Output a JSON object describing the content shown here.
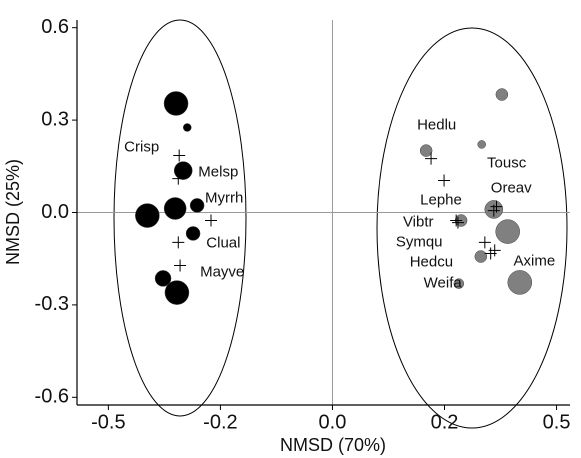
{
  "chart_data": {
    "type": "scatter",
    "x_label": "NMSD (70%)",
    "y_label": "NMSD (25%)",
    "xlim": [
      -0.57,
      0.53
    ],
    "ylim": [
      -0.625,
      0.625
    ],
    "xticks": [
      -0.5,
      {
        "value": -0.25,
        "label": "-0.2"
      },
      {
        "value": 0,
        "label": "0.0"
      },
      {
        "value": 0.25,
        "label": "0.2"
      },
      0.5
    ],
    "yticks": [
      0.6,
      0.3,
      {
        "value": 0,
        "label": "0.0"
      },
      -0.3,
      -0.6
    ],
    "series": [
      {
        "color": "#000000",
        "x": [
          -0.349,
          -0.324,
          -0.333,
          -0.302,
          -0.351,
          -0.413,
          -0.311,
          -0.378,
          -0.347
        ],
        "values": [
          0.354,
          0.276,
          0.136,
          0.023,
          0.013,
          -0.01,
          -0.068,
          -0.214,
          -0.26
        ],
        "sizes": [
          12,
          4,
          9,
          7,
          11,
          12,
          7,
          8,
          12
        ]
      },
      {
        "color": "#808080",
        "x": [
          0.378,
          0.209,
          0.333,
          0.36,
          0.391,
          0.287,
          0.331,
          0.282,
          0.418
        ],
        "values": [
          0.383,
          0.201,
          0.221,
          0.01,
          -0.062,
          -0.026,
          -0.143,
          -0.231,
          -0.227
        ],
        "sizes": [
          6,
          6,
          4,
          9,
          12,
          6,
          6,
          5,
          12
        ]
      }
    ],
    "species": {
      "names": [
        "Crisp",
        "Melsp",
        "Myrrh",
        "Clual",
        "Mayve",
        "Hedlu",
        "Tousc",
        "Oreav",
        "Lephe",
        "Vibtr",
        "Symqu",
        "Hedcu",
        "Axime",
        "Weifa"
      ],
      "x": [
        -0.342,
        -0.344,
        -0.271,
        -0.344,
        -0.34,
        0.22,
        0.249,
        0.36,
        0.276,
        0.28,
        0.34,
        0.362,
        0.366,
        0.353
      ],
      "values": [
        0.185,
        0.11,
        -0.026,
        -0.097,
        -0.172,
        0.175,
        0.104,
        0.006,
        -0.026,
        -0.033,
        -0.097,
        -0.123,
        0.019,
        -0.133
      ]
    }
  }
}
